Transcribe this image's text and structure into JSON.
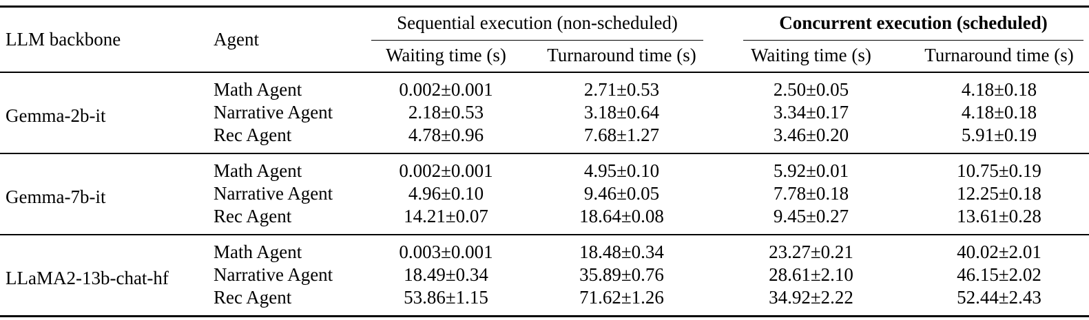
{
  "table": {
    "headers": {
      "llm_backbone": "LLM backbone",
      "agent": "Agent",
      "sequential_group": "Sequential execution (non-scheduled)",
      "concurrent_group": "Concurrent execution (scheduled)",
      "seq_waiting": "Waiting time (s)",
      "seq_turnaround": "Turnaround time (s)",
      "conc_waiting": "Waiting time (s)",
      "conc_turnaround": "Turnaround time (s)"
    },
    "groups": [
      {
        "backbone": "Gemma-2b-it",
        "rows": [
          {
            "agent": "Math Agent",
            "seq_waiting": "0.002±0.001",
            "seq_turnaround": "2.71±0.53",
            "conc_waiting": "2.50±0.05",
            "conc_turnaround": "4.18±0.18"
          },
          {
            "agent": "Narrative Agent",
            "seq_waiting": "2.18±0.53",
            "seq_turnaround": "3.18±0.64",
            "conc_waiting": "3.34±0.17",
            "conc_turnaround": "4.18±0.18"
          },
          {
            "agent": "Rec Agent",
            "seq_waiting": "4.78±0.96",
            "seq_turnaround": "7.68±1.27",
            "conc_waiting": "3.46±0.20",
            "conc_turnaround": "5.91±0.19"
          }
        ]
      },
      {
        "backbone": "Gemma-7b-it",
        "rows": [
          {
            "agent": "Math Agent",
            "seq_waiting": "0.002±0.001",
            "seq_turnaround": "4.95±0.10",
            "conc_waiting": "5.92±0.01",
            "conc_turnaround": "10.75±0.19"
          },
          {
            "agent": "Narrative Agent",
            "seq_waiting": "4.96±0.10",
            "seq_turnaround": "9.46±0.05",
            "conc_waiting": "7.78±0.18",
            "conc_turnaround": "12.25±0.18"
          },
          {
            "agent": "Rec Agent",
            "seq_waiting": "14.21±0.07",
            "seq_turnaround": "18.64±0.08",
            "conc_waiting": "9.45±0.27",
            "conc_turnaround": "13.61±0.28"
          }
        ]
      },
      {
        "backbone": "LLaMA2-13b-chat-hf",
        "rows": [
          {
            "agent": "Math Agent",
            "seq_waiting": "0.003±0.001",
            "seq_turnaround": "18.48±0.34",
            "conc_waiting": "23.27±0.21",
            "conc_turnaround": "40.02±2.01"
          },
          {
            "agent": "Narrative Agent",
            "seq_waiting": "18.49±0.34",
            "seq_turnaround": "35.89±0.76",
            "conc_waiting": "28.61±2.10",
            "conc_turnaround": "46.15±2.02"
          },
          {
            "agent": "Rec Agent",
            "seq_waiting": "53.86±1.15",
            "seq_turnaround": "71.62±1.26",
            "conc_waiting": "34.92±2.22",
            "conc_turnaround": "52.44±2.43"
          }
        ]
      }
    ],
    "text_color": "#000000",
    "rule_color": "#000000"
  }
}
